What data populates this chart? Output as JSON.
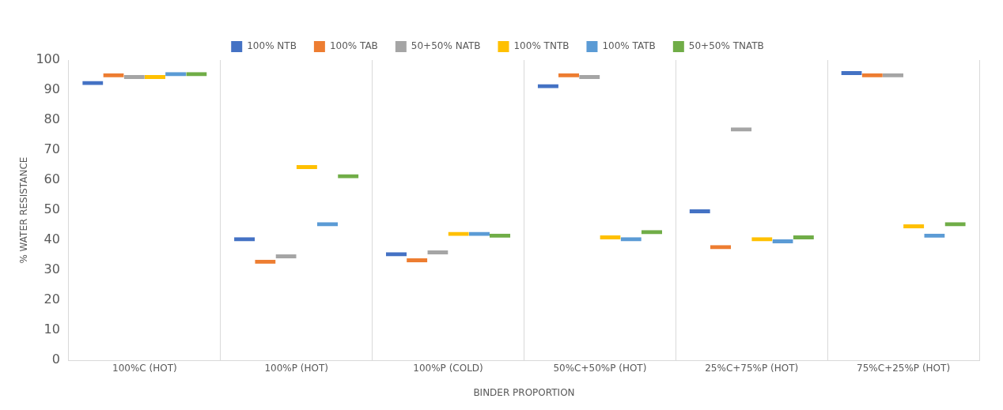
{
  "chart_data": {
    "type": "bar",
    "xlabel": "BINDER PROPORTION",
    "ylabel": "% WATER RESISTANCE",
    "categories": [
      "100%C (HOT)",
      "100%P (HOT)",
      "100%P (COLD)",
      "50%C+50%P (HOT)",
      "25%C+75%P (HOT)",
      "75%C+25%P (HOT)"
    ],
    "series": [
      {
        "name": "100% NTB",
        "color": "#4472c4",
        "values": [
          93,
          41,
          36,
          92,
          50.3,
          96.3
        ]
      },
      {
        "name": "100% TAB",
        "color": "#ed7d31",
        "values": [
          95.6,
          33.5,
          34,
          95.6,
          38.4,
          95.6
        ]
      },
      {
        "name": "50+50% NATB",
        "color": "#a5a5a5",
        "values": [
          95,
          35.3,
          36.6,
          95,
          77.6,
          95.6
        ]
      },
      {
        "name": "100% TNTB",
        "color": "#ffc000",
        "values": [
          95,
          65,
          42.8,
          41.6,
          41,
          45.3
        ]
      },
      {
        "name": "100% TATB",
        "color": "#5b9bd5",
        "values": [
          96,
          46,
          42.8,
          41,
          40.3,
          42.2
        ]
      },
      {
        "name": "50+50% TNATB",
        "color": "#70ad47",
        "values": [
          96,
          62,
          42.2,
          43.4,
          41.6,
          46
        ]
      }
    ],
    "ylim": [
      0,
      100
    ],
    "yticks": [
      0,
      10,
      20,
      30,
      40,
      50,
      60,
      70,
      80,
      90,
      100
    ],
    "grid": "x",
    "legend": "top"
  }
}
